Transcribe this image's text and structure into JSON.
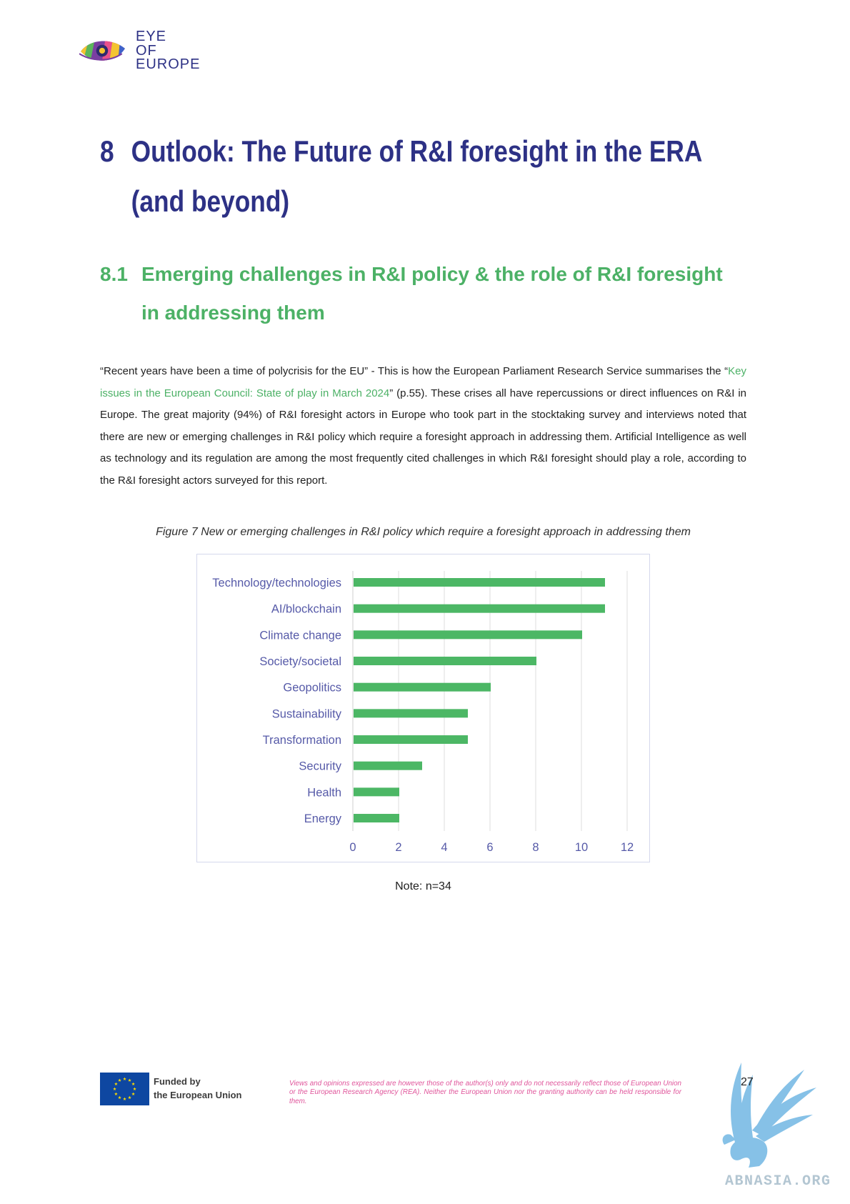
{
  "logo": {
    "line1": "EYE",
    "line2": "OF",
    "line3": "EUROPE",
    "icon": "eye-of-europe-logo-icon"
  },
  "heading": {
    "number": "8",
    "text": "Outlook: The Future of R&I foresight in the ERA (and beyond)"
  },
  "subheading": {
    "number": "8.1",
    "text": "Emerging challenges in R&I policy & the role of R&I foresight in addressing them"
  },
  "body": {
    "text_before_link": "“Recent years have been a time of polycrisis for the EU” - This is how the European Parliament Research Service summarises the “",
    "link_text": "Key issues in the European Council: State of play in March 2024",
    "text_after_link": "” (p.55). These crises all have repercussions or direct influences on R&I in Europe. The great majority (94%) of R&I foresight actors in Europe who took part in the stocktaking survey and interviews noted that there are new or emerging challenges in R&I policy which require a foresight approach in addressing them. Artificial Intelligence as well as technology and its regulation are among the most frequently cited challenges in which R&I foresight should play a role, according to the R&I foresight actors surveyed for this report."
  },
  "figure": {
    "caption": "Figure 7 New or emerging challenges in R&I policy which require a foresight approach in addressing them",
    "note": "Note: n=34"
  },
  "chart_data": {
    "type": "bar",
    "orientation": "horizontal",
    "categories": [
      "Technology/technologies",
      "AI/blockchain",
      "Climate change",
      "Society/societal",
      "Geopolitics",
      "Sustainability",
      "Transformation",
      "Security",
      "Health",
      "Energy"
    ],
    "values": [
      11,
      11,
      10,
      8,
      6,
      5,
      5,
      3,
      2,
      2
    ],
    "xlim": [
      0,
      12
    ],
    "xticks": [
      0,
      2,
      4,
      6,
      8,
      10,
      12
    ],
    "grid": true,
    "legend": "none",
    "colors": {
      "bar": "#4cb765",
      "label": "#565aa8",
      "grid": "#dedede",
      "axis": "#cfcfcf"
    }
  },
  "footer": {
    "funded_line1": "Funded by",
    "funded_line2": "the European Union",
    "flag_icon": "eu-flag-icon",
    "disclaimer": "Views and opinions expressed are however those of the author(s) only and do not necessarily reflect those of European Union or the European Research Agency (REA). Neither the European Union nor the granting authority can be held responsible for them.",
    "page_number": "27"
  },
  "watermark": {
    "text": "ABNASIA.ORG",
    "icon": "griffin-watermark-icon"
  },
  "colors": {
    "heading": "#2d3185",
    "accent_green": "#4cb166",
    "link": "#4cb166",
    "disclaimer": "#e0559b",
    "eu_blue": "#0e47a1",
    "eu_yellow": "#ffdd00"
  }
}
